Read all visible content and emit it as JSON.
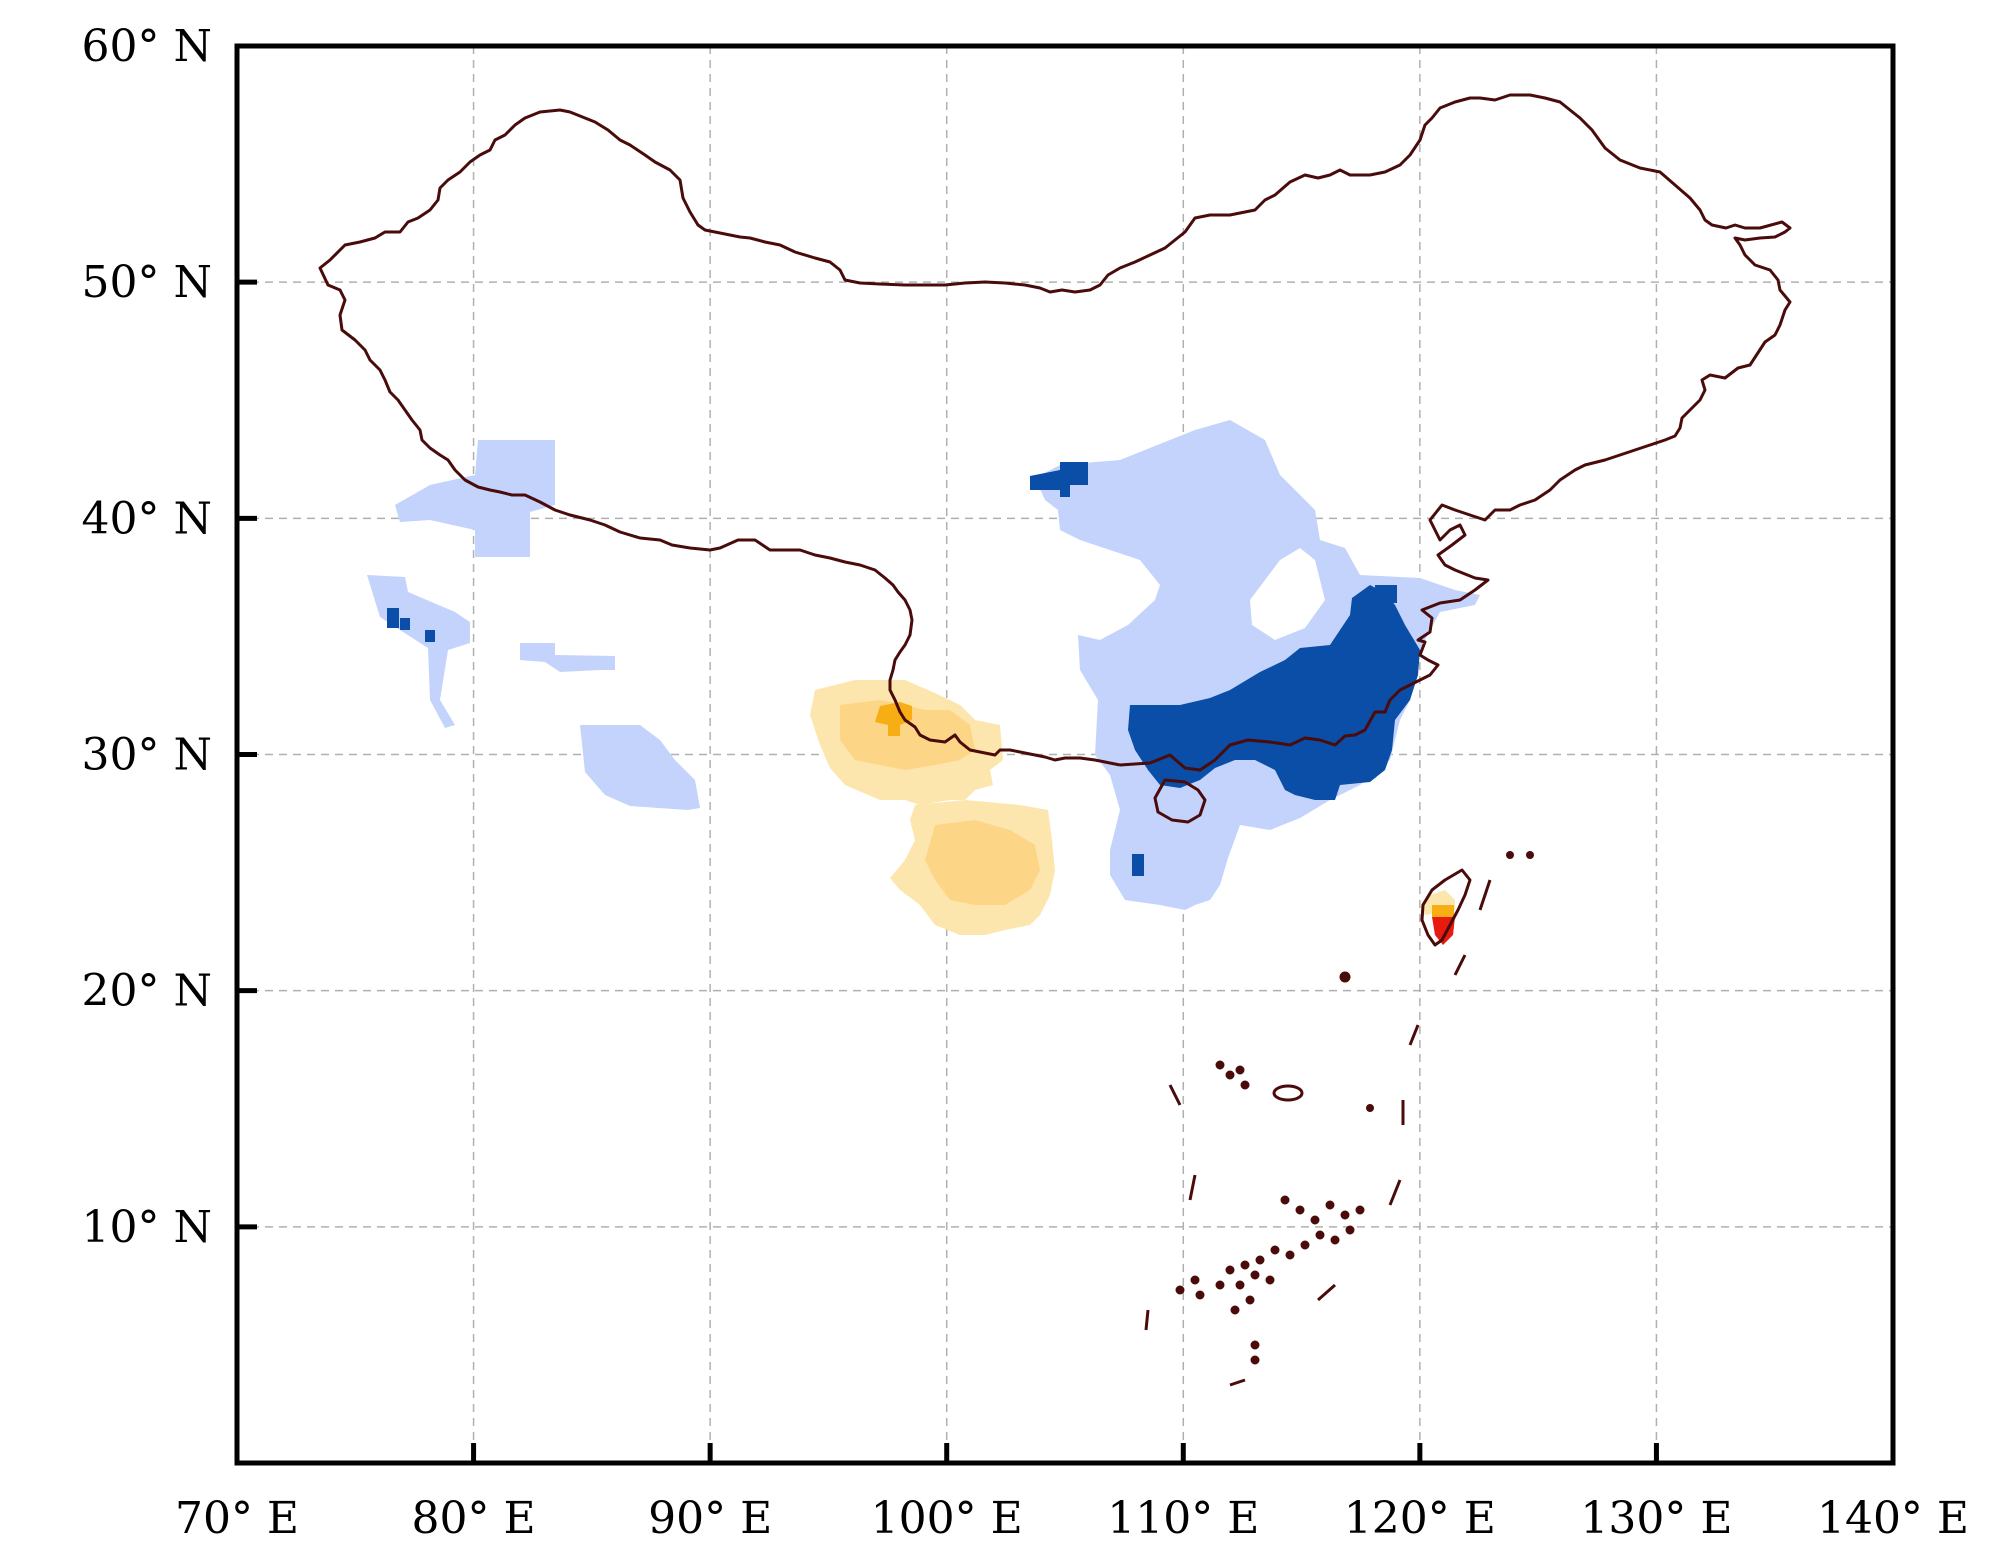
{
  "map": {
    "x_axis": {
      "tick_values": [
        70,
        80,
        90,
        100,
        110,
        120,
        130,
        140
      ],
      "tick_labels": [
        "70° E",
        "80° E",
        "90° E",
        "100° E",
        "110° E",
        "120° E",
        "130° E",
        "140° E"
      ],
      "range": [
        70,
        140
      ]
    },
    "y_axis": {
      "tick_values": [
        10,
        20,
        30,
        40,
        50,
        60
      ],
      "tick_labels": [
        "10° N",
        "20° N",
        "30° N",
        "40° N",
        "50° N",
        "60° N"
      ],
      "range": [
        0,
        60
      ]
    },
    "grid": true,
    "colors": {
      "outline": "#4a0b0b",
      "light_blue": "#c3d3fb",
      "dark_blue": "#0a4ea8",
      "light_yellow": "#fde6ad",
      "yellow": "#fcd587",
      "orange": "#f7ad14",
      "red": "#e81a10",
      "grid": "#b0b0b0",
      "frame": "#000000"
    }
  }
}
